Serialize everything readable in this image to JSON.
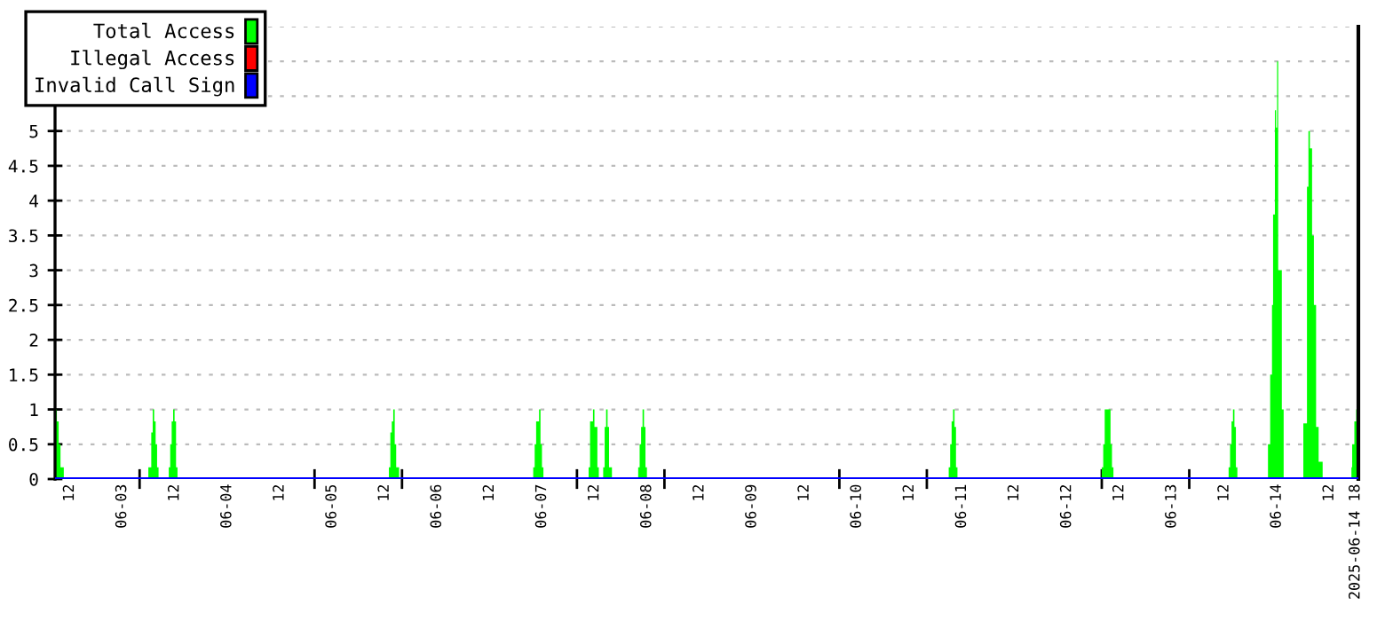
{
  "chart_data": {
    "type": "area",
    "xlim": [
      "2025-06-02T08:40",
      "2025-06-14T18:40"
    ],
    "xticks": [
      {
        "value": "2025-06-02T12:00",
        "label": "12"
      },
      {
        "value": "2025-06-03T00:00",
        "label": "06-03"
      },
      {
        "value": "2025-06-03T12:00",
        "label": "12"
      },
      {
        "value": "2025-06-04T00:00",
        "label": "06-04"
      },
      {
        "value": "2025-06-04T12:00",
        "label": "12"
      },
      {
        "value": "2025-06-05T00:00",
        "label": "06-05"
      },
      {
        "value": "2025-06-05T12:00",
        "label": "12"
      },
      {
        "value": "2025-06-06T00:00",
        "label": "06-06"
      },
      {
        "value": "2025-06-06T12:00",
        "label": "12"
      },
      {
        "value": "2025-06-07T00:00",
        "label": "06-07"
      },
      {
        "value": "2025-06-07T12:00",
        "label": "12"
      },
      {
        "value": "2025-06-08T00:00",
        "label": "06-08"
      },
      {
        "value": "2025-06-08T12:00",
        "label": "12"
      },
      {
        "value": "2025-06-09T00:00",
        "label": "06-09"
      },
      {
        "value": "2025-06-09T12:00",
        "label": "12"
      },
      {
        "value": "2025-06-10T00:00",
        "label": "06-10"
      },
      {
        "value": "2025-06-10T12:00",
        "label": "12"
      },
      {
        "value": "2025-06-11T00:00",
        "label": "06-11"
      },
      {
        "value": "2025-06-11T12:00",
        "label": "12"
      },
      {
        "value": "2025-06-12T00:00",
        "label": "06-12"
      },
      {
        "value": "2025-06-12T12:00",
        "label": "12"
      },
      {
        "value": "2025-06-13T00:00",
        "label": "06-13"
      },
      {
        "value": "2025-06-13T12:00",
        "label": "12"
      },
      {
        "value": "2025-06-14T00:00",
        "label": "06-14"
      },
      {
        "value": "2025-06-14T12:00",
        "label": "12"
      },
      {
        "value": "2025-06-14T18:00",
        "label": "2025-06-14 18"
      },
      {
        "value": "2025-06-03T04:00",
        "label": null
      },
      {
        "value": "2025-06-04T20:00",
        "label": null
      },
      {
        "value": "2025-06-05T16:00",
        "label": null
      },
      {
        "value": "2025-06-07T08:00",
        "label": null
      },
      {
        "value": "2025-06-08T04:00",
        "label": null
      },
      {
        "value": "2025-06-09T20:00",
        "label": null
      },
      {
        "value": "2025-06-10T16:00",
        "label": null
      },
      {
        "value": "2025-06-12T08:00",
        "label": null
      },
      {
        "value": "2025-06-13T04:00",
        "label": null
      }
    ],
    "ylim": [
      0,
      6.5
    ],
    "yticks": [
      0,
      0.5,
      1,
      1.5,
      2,
      2.5,
      3,
      3.5,
      4,
      4.5,
      5,
      {
        "value": 5.5,
        "label": null
      },
      {
        "value": 6,
        "label": null
      },
      {
        "value": 6.5,
        "label": null
      }
    ],
    "grid": "y",
    "legend": "top left",
    "series": [
      {
        "name": "Total Access",
        "color": "#00ff00",
        "x": [
          "2025-06-02T08:40",
          "2025-06-02T09:05",
          "2025-06-02T09:30",
          "2025-06-02T09:55",
          "2025-06-02T10:40",
          "2025-06-03T06:00",
          "2025-06-03T06:40",
          "2025-06-03T07:00",
          "2025-06-03T07:20",
          "2025-06-03T07:40",
          "2025-06-03T08:00",
          "2025-06-03T08:20",
          "2025-06-03T10:40",
          "2025-06-03T11:00",
          "2025-06-03T11:20",
          "2025-06-03T11:40",
          "2025-06-03T12:00",
          "2025-06-03T12:20",
          "2025-06-03T12:40",
          "2025-06-05T13:00",
          "2025-06-05T13:20",
          "2025-06-05T13:40",
          "2025-06-05T14:00",
          "2025-06-05T14:20",
          "2025-06-05T14:40",
          "2025-06-05T15:20",
          "2025-06-06T22:00",
          "2025-06-06T22:20",
          "2025-06-06T22:40",
          "2025-06-06T23:20",
          "2025-06-06T23:40",
          "2025-06-07T00:00",
          "2025-06-07T00:20",
          "2025-06-07T10:40",
          "2025-06-07T11:00",
          "2025-06-07T11:40",
          "2025-06-07T12:00",
          "2025-06-07T12:40",
          "2025-06-07T13:00",
          "2025-06-07T14:00",
          "2025-06-07T14:20",
          "2025-06-07T14:40",
          "2025-06-07T15:00",
          "2025-06-07T15:20",
          "2025-06-07T16:00",
          "2025-06-07T22:00",
          "2025-06-07T22:20",
          "2025-06-07T22:40",
          "2025-06-07T23:00",
          "2025-06-07T23:20",
          "2025-06-07T23:40",
          "2025-06-08T00:00",
          "2025-06-10T21:00",
          "2025-06-10T21:20",
          "2025-06-10T21:40",
          "2025-06-10T22:00",
          "2025-06-10T22:20",
          "2025-06-10T22:40",
          "2025-06-10T23:00",
          "2025-06-12T08:00",
          "2025-06-12T08:20",
          "2025-06-12T08:40",
          "2025-06-12T10:00",
          "2025-06-12T10:20",
          "2025-06-12T10:40",
          "2025-06-13T13:00",
          "2025-06-13T13:20",
          "2025-06-13T13:40",
          "2025-06-13T14:00",
          "2025-06-13T14:20",
          "2025-06-13T14:40",
          "2025-06-13T15:00",
          "2025-06-13T22:00",
          "2025-06-13T22:30",
          "2025-06-13T22:55",
          "2025-06-13T23:10",
          "2025-06-13T23:35",
          "2025-06-13T23:50",
          "2025-06-14T00:05",
          "2025-06-14T00:20",
          "2025-06-14T01:10",
          "2025-06-14T01:35",
          "2025-06-14T06:05",
          "2025-06-14T06:55",
          "2025-06-14T07:15",
          "2025-06-14T07:35",
          "2025-06-14T08:05",
          "2025-06-14T08:30",
          "2025-06-14T09:00",
          "2025-06-14T09:35",
          "2025-06-14T10:30",
          "2025-06-14T17:05",
          "2025-06-14T17:15",
          "2025-06-14T17:45",
          "2025-06-14T18:10",
          "2025-06-14T18:40"
        ],
        "values": [
          1,
          0.83,
          0.5,
          0.17,
          0,
          0.17,
          0.67,
          1,
          0.83,
          0.5,
          0.17,
          0,
          0.17,
          0.5,
          0.83,
          1,
          0.83,
          0.17,
          0,
          0.17,
          0.67,
          0.83,
          1,
          0.5,
          0.17,
          0,
          0.17,
          0.5,
          0.83,
          1,
          0.5,
          0.17,
          0,
          0.17,
          0.83,
          1,
          0.75,
          0.17,
          0,
          0.17,
          0.75,
          1,
          0.75,
          0.17,
          0,
          0.17,
          0.5,
          0.75,
          1,
          0.75,
          0.17,
          0,
          0.17,
          0.5,
          0.83,
          1,
          0.75,
          0.17,
          0,
          0.17,
          0.5,
          1,
          0.5,
          0.17,
          0,
          0.17,
          0.5,
          0.83,
          1,
          0.75,
          0.17,
          0,
          0.5,
          1.5,
          2.5,
          3.8,
          5.3,
          5.05,
          6,
          3,
          1,
          0,
          0.8,
          4.2,
          5,
          4.75,
          3.5,
          2.5,
          0.75,
          0.25,
          0,
          0.17,
          0.5,
          0.83,
          1,
          1
        ]
      },
      {
        "name": "Illegal Access",
        "color": "#ff0000",
        "type": "line"
      },
      {
        "name": "Invalid Call Sign",
        "color": "#0000ff",
        "type": "line",
        "x": [
          "2025-06-02T08:40",
          "2025-06-14T18:40"
        ],
        "values": [
          0,
          0
        ]
      }
    ]
  }
}
